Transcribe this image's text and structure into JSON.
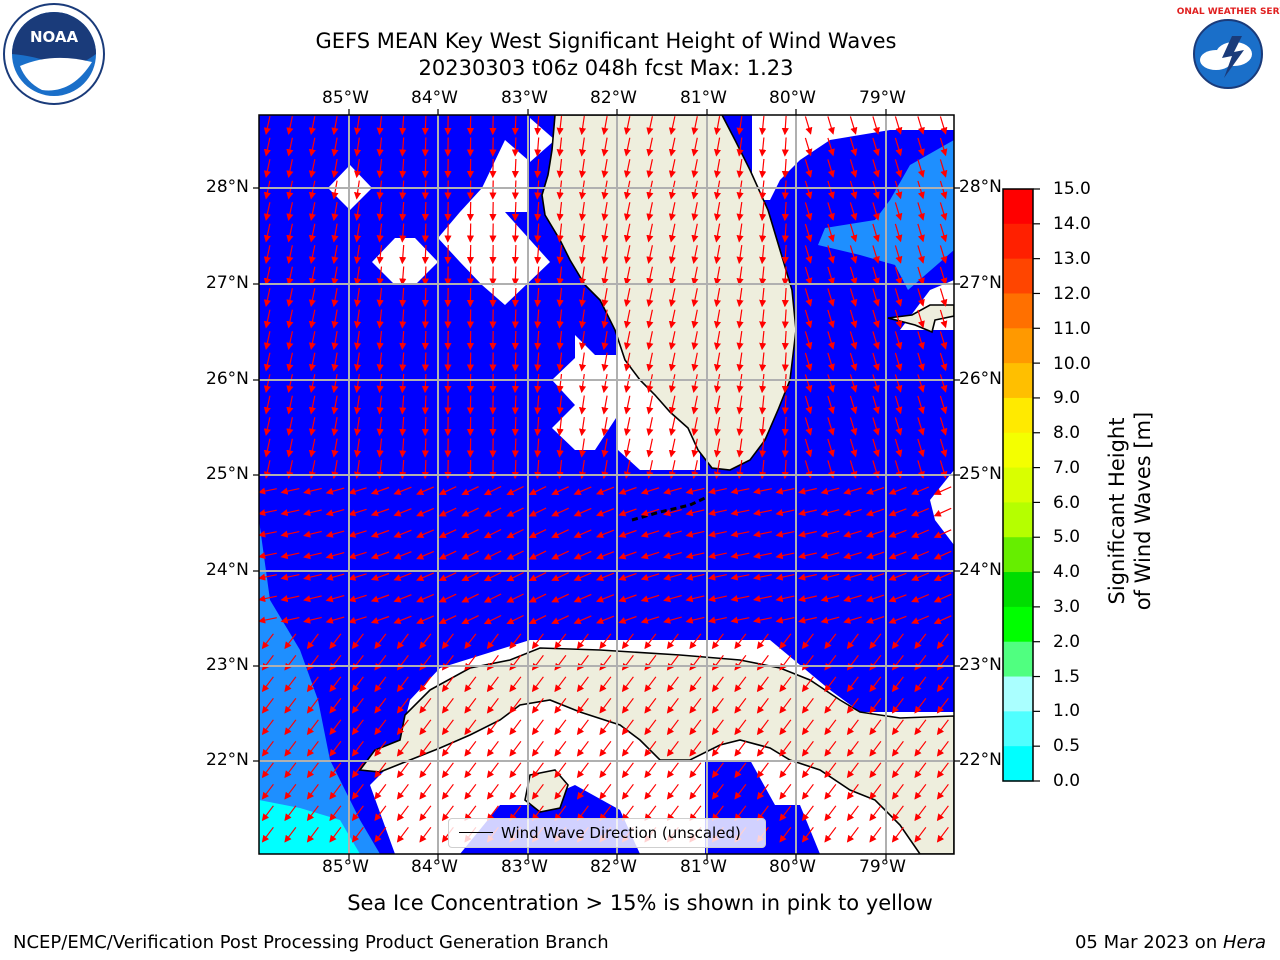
{
  "header": {
    "title_line1": "GEFS MEAN Key West Significant Height of Wind Waves",
    "title_line2": "20230303 t06z 048h fcst   Max: 1.23"
  },
  "map": {
    "lon_ticks": [
      "85°W",
      "84°W",
      "83°W",
      "82°W",
      "81°W",
      "80°W",
      "79°W"
    ],
    "lat_ticks": [
      "28°N",
      "27°N",
      "26°N",
      "25°N",
      "24°N",
      "23°N",
      "22°N"
    ],
    "legend_label": "Wind Wave Direction (unscaled)",
    "colors": {
      "ocean_0_0.5": "#0000ff",
      "ocean_0.5_1.0": "#1e8fff",
      "ocean_1.0_1.5": "#00ffff",
      "land": "#eeeedd",
      "arrows": "#ff0000"
    }
  },
  "colorbar": {
    "title": "Significant Height of Wind Waves [m]",
    "ticks": [
      "15.0",
      "14.0",
      "13.0",
      "12.0",
      "11.0",
      "10.0",
      "9.0",
      "8.0",
      "7.0",
      "6.0",
      "5.0",
      "4.0",
      "3.0",
      "2.0",
      "1.5",
      "1.0",
      "0.5",
      "0.0"
    ],
    "colors": [
      "#ff0000",
      "#ff2000",
      "#ff4500",
      "#ff7000",
      "#ff9900",
      "#ffbf00",
      "#ffea00",
      "#f4ff00",
      "#d9ff00",
      "#b5ff00",
      "#66ee00",
      "#00dd00",
      "#00ff00",
      "#50ff80",
      "#aaffff",
      "#50ffff",
      "#00ffff",
      "#1e8fff",
      "#0000ff"
    ]
  },
  "footer": {
    "note": "Sea Ice Concentration > 15% is shown in pink to yellow",
    "left": "NCEP/EMC/Verification Post Processing Product Generation Branch",
    "date": "05 Mar 2023 on ",
    "machine": "Hera"
  },
  "logos": {
    "noaa_text": "NOAA",
    "nws_text": "NATIONAL WEATHER SERVICE"
  }
}
